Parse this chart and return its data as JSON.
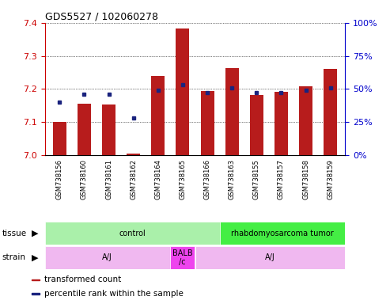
{
  "title": "GDS5527 / 102060278",
  "samples": [
    "GSM738156",
    "GSM738160",
    "GSM738161",
    "GSM738162",
    "GSM738164",
    "GSM738165",
    "GSM738166",
    "GSM738163",
    "GSM738155",
    "GSM738157",
    "GSM738158",
    "GSM738159"
  ],
  "transformed_count": [
    7.101,
    7.155,
    7.152,
    7.005,
    7.238,
    7.383,
    7.193,
    7.263,
    7.182,
    7.192,
    7.207,
    7.26
  ],
  "percentile_rank": [
    40,
    46,
    46,
    28,
    49,
    53,
    47,
    51,
    47,
    47,
    49,
    51
  ],
  "bar_color": "#b71c1c",
  "dot_color": "#1a237e",
  "ylim_left": [
    7.0,
    7.4
  ],
  "ylim_right": [
    0,
    100
  ],
  "yticks_left": [
    7.0,
    7.1,
    7.2,
    7.3,
    7.4
  ],
  "yticks_right": [
    0,
    25,
    50,
    75,
    100
  ],
  "ytick_labels_right": [
    "0%",
    "25%",
    "50%",
    "75%",
    "100%"
  ],
  "baseline": 7.0,
  "tissue_groups": [
    {
      "label": "control",
      "start": 0,
      "end": 7,
      "color": "#aaf0aa"
    },
    {
      "label": "rhabdomyosarcoma tumor",
      "start": 7,
      "end": 12,
      "color": "#44ee44"
    }
  ],
  "strain_groups": [
    {
      "label": "A/J",
      "start": 0,
      "end": 5,
      "color": "#f0b8f0"
    },
    {
      "label": "BALB\n/c",
      "start": 5,
      "end": 6,
      "color": "#ee44ee"
    },
    {
      "label": "A/J",
      "start": 6,
      "end": 12,
      "color": "#f0b8f0"
    }
  ],
  "legend_items": [
    {
      "label": "transformed count",
      "color": "#b71c1c"
    },
    {
      "label": "percentile rank within the sample",
      "color": "#1a237e"
    }
  ],
  "bar_width": 0.55,
  "title_color": "#000000",
  "left_axis_color": "#cc0000",
  "right_axis_color": "#0000cc",
  "grid_color": "#000000",
  "background_color": "#ffffff"
}
